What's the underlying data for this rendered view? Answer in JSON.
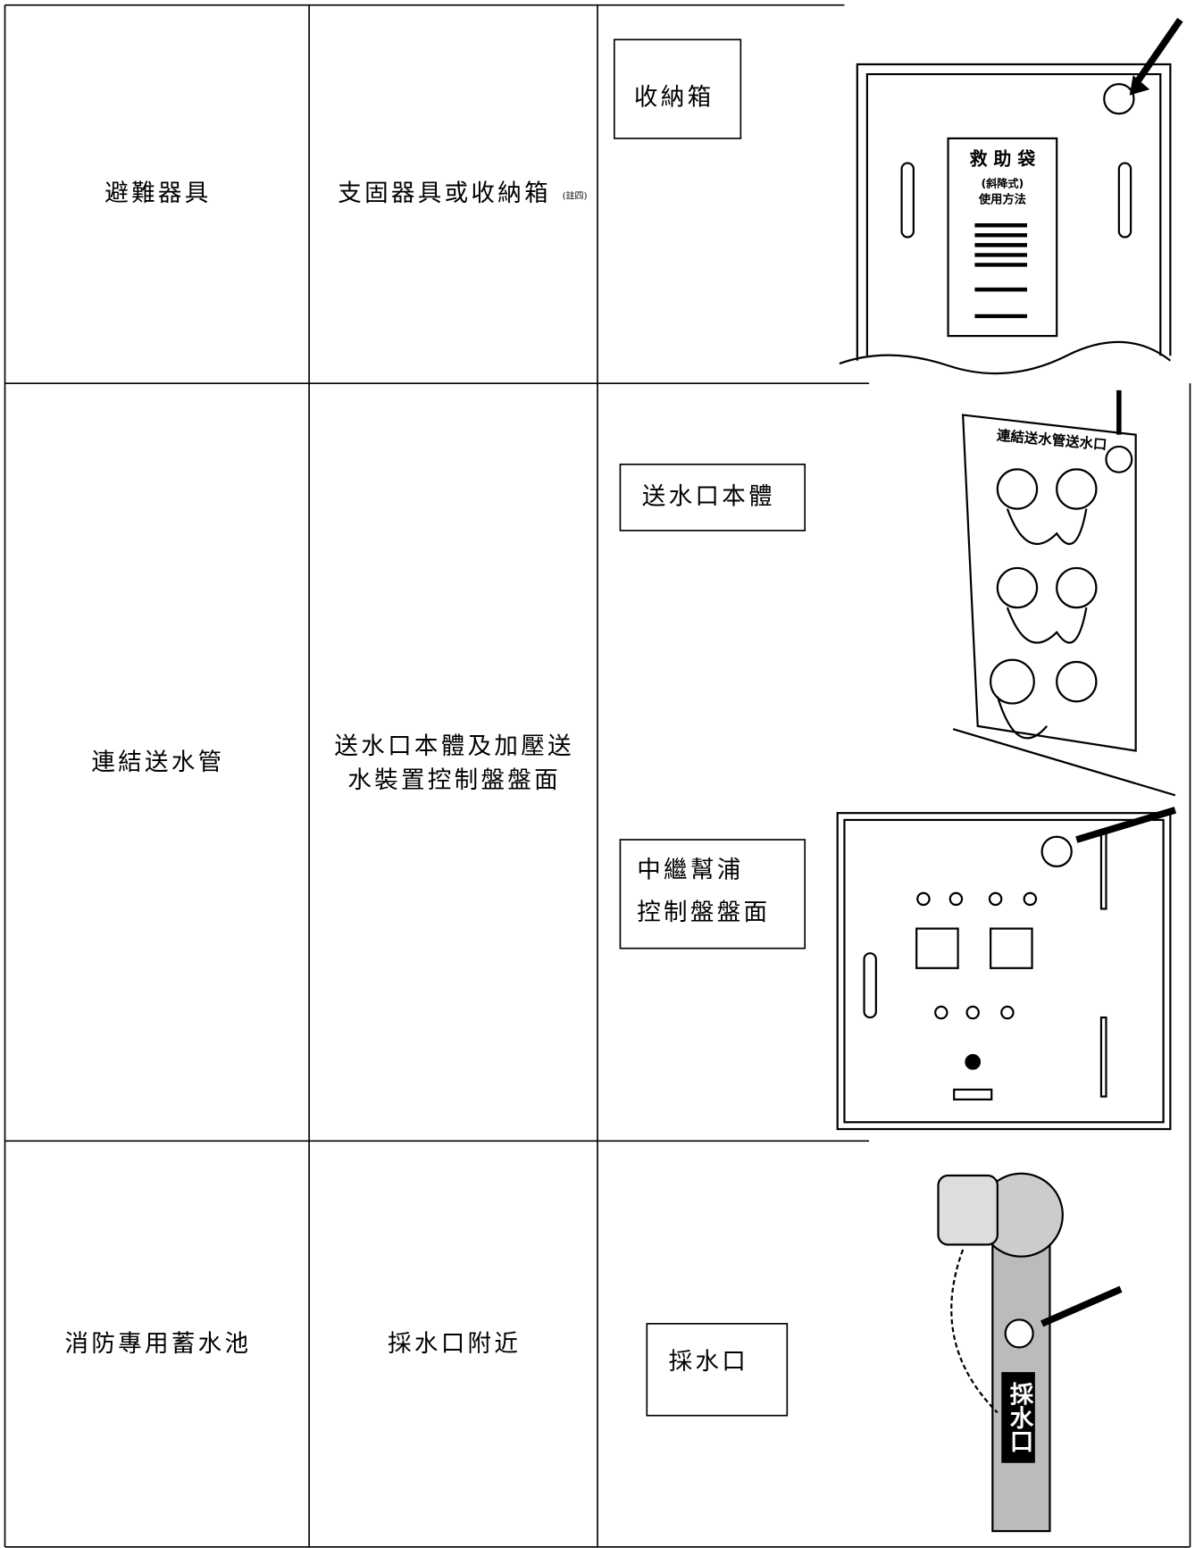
{
  "table": {
    "rows": [
      {
        "equipment": "避難器具",
        "location": [
          "支固器具或收納箱"
        ],
        "note": "(註四)",
        "labels": [
          [
            "收納箱"
          ]
        ]
      },
      {
        "equipment": "連結送水管",
        "location": [
          "送水口本體及加壓送",
          "水裝置控制盤盤面"
        ],
        "labels": [
          [
            "送水口本體"
          ],
          [
            "中繼幫浦",
            "控制盤盤面"
          ]
        ]
      },
      {
        "equipment": "消防專用蓄水池",
        "location": [
          "採水口附近"
        ],
        "labels": [
          [
            "採水口"
          ]
        ]
      }
    ]
  },
  "illustrations": {
    "rescue_bag": [
      "救 助 袋",
      "(斜降式)",
      "使用方法"
    ],
    "connection": "連結送水管送水口",
    "intake": "採水口"
  }
}
